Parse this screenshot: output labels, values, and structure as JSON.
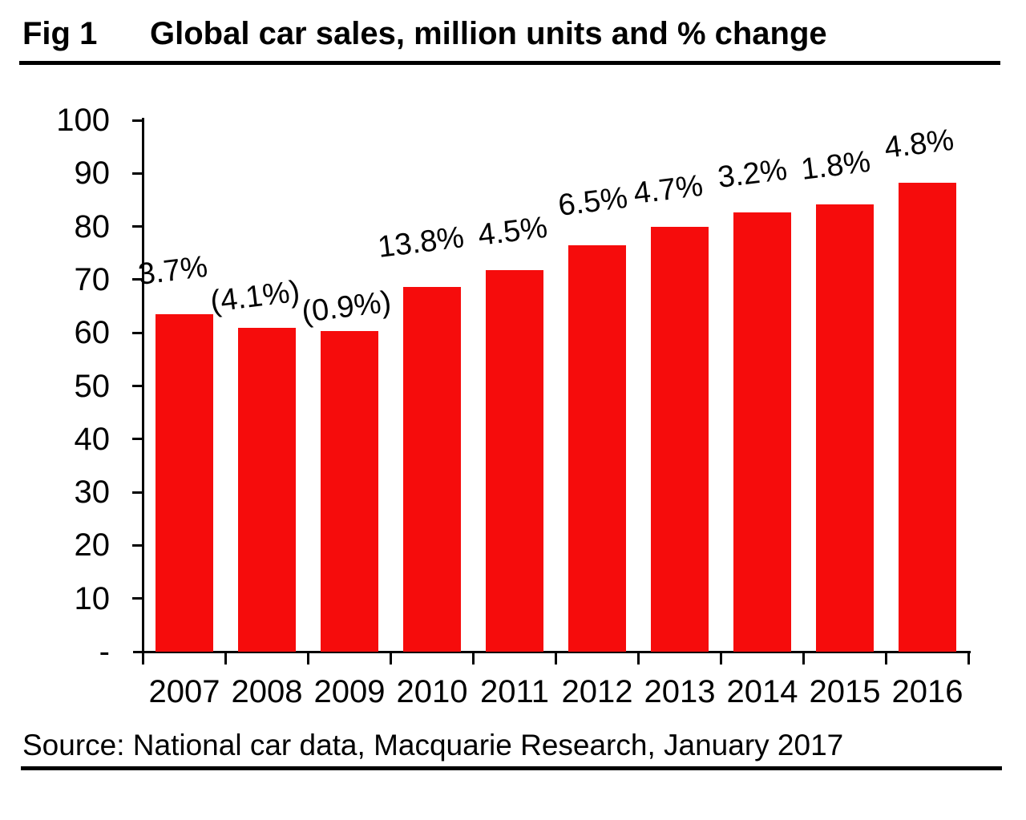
{
  "figure": {
    "tag": "Fig 1",
    "title": "Global car sales, million units and % change"
  },
  "source_text": "Source: National car data, Macquarie Research, January 2017",
  "colors": {
    "bar": "#f60c0c",
    "axis": "#000000",
    "text": "#000000",
    "background": "#ffffff"
  },
  "chart_data": {
    "type": "bar",
    "title": "Global car sales, million units and % change",
    "categories": [
      "2007",
      "2008",
      "2009",
      "2010",
      "2011",
      "2012",
      "2013",
      "2014",
      "2015",
      "2016"
    ],
    "series": [
      {
        "name": "Global car sales, million units",
        "values": [
          63.5,
          60.9,
          60.4,
          68.7,
          71.8,
          76.4,
          80.0,
          82.6,
          84.1,
          88.2
        ]
      }
    ],
    "point_labels": [
      "3.7%",
      "(4.1%)",
      "(0.9%)",
      "13.8%",
      "4.5%",
      "6.5%",
      "4.7%",
      "3.2%",
      "1.8%",
      "4.8%"
    ],
    "xlabel": "",
    "ylabel": "",
    "ylim": [
      0,
      100
    ],
    "ytick_step": 10,
    "ytick_labels": [
      "-",
      "10",
      "20",
      "30",
      "40",
      "50",
      "60",
      "70",
      "80",
      "90",
      "100"
    ],
    "grid": false,
    "legend": "none"
  }
}
